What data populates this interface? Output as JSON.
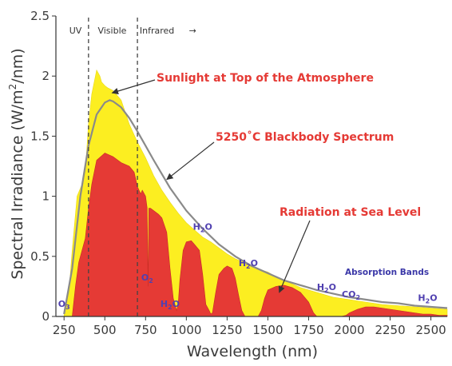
{
  "chart_data": {
    "type": "area",
    "xlabel": "Wavelength (nm)",
    "ylabel_main": "Spectral Irradiance (W/m",
    "ylabel_sup": "2",
    "ylabel_end": "/nm)",
    "xlim": [
      200,
      2600
    ],
    "ylim": [
      0,
      2.5
    ],
    "x_ticks": [
      250,
      500,
      750,
      1000,
      1250,
      1500,
      1750,
      2000,
      2250,
      2500
    ],
    "y_ticks": [
      0,
      0.5,
      1,
      1.5,
      2,
      2.5
    ],
    "y_tick_labels": [
      "0",
      "0.5",
      "1",
      "1.5",
      "2",
      "2.5"
    ],
    "grid": false,
    "colors": {
      "top_of_atmosphere": "#fcee21",
      "sea_level": "#e53a35",
      "blackbody": "#8a8a8a",
      "labels": "#e53a35",
      "molecules": "#5040b0"
    },
    "regions": [
      {
        "label": "UV",
        "x_center": 320
      },
      {
        "label": "Visible",
        "x_center": 545
      },
      {
        "label": "Infrared",
        "x_center": 820
      }
    ],
    "region_boundaries": [
      400,
      700
    ],
    "region_arrow": "→",
    "series": [
      {
        "name": "Sunlight at Top of the Atmosphere",
        "x": [
          250,
          280,
          300,
          330,
          360,
          380,
          400,
          420,
          450,
          470,
          480,
          500,
          520,
          550,
          600,
          650,
          700,
          750,
          800,
          850,
          900,
          950,
          1000,
          1050,
          1100,
          1150,
          1200,
          1250,
          1300,
          1350,
          1400,
          1450,
          1500,
          1550,
          1600,
          1700,
          1800,
          1900,
          2000,
          2100,
          2200,
          2300,
          2400,
          2500,
          2600
        ],
        "values": [
          0.05,
          0.2,
          0.55,
          1.0,
          1.1,
          1.2,
          1.6,
          1.85,
          2.05,
          2.0,
          1.95,
          1.92,
          1.9,
          1.88,
          1.8,
          1.6,
          1.45,
          1.32,
          1.17,
          1.05,
          0.95,
          0.86,
          0.78,
          0.72,
          0.66,
          0.62,
          0.57,
          0.52,
          0.48,
          0.45,
          0.42,
          0.39,
          0.37,
          0.33,
          0.3,
          0.24,
          0.2,
          0.16,
          0.14,
          0.12,
          0.1,
          0.09,
          0.08,
          0.07,
          0.06
        ]
      },
      {
        "name": "Radiation at Sea Level",
        "x": [
          300,
          320,
          340,
          360,
          380,
          400,
          420,
          450,
          500,
          550,
          600,
          650,
          680,
          700,
          720,
          730,
          750,
          760,
          765,
          770,
          780,
          800,
          830,
          850,
          880,
          900,
          920,
          940,
          950,
          960,
          980,
          1000,
          1030,
          1050,
          1080,
          1100,
          1120,
          1140,
          1150,
          1160,
          1180,
          1200,
          1230,
          1250,
          1280,
          1300,
          1320,
          1340,
          1360,
          1380,
          1400,
          1420,
          1440,
          1460,
          1480,
          1500,
          1550,
          1600,
          1650,
          1700,
          1750,
          1780,
          1800,
          1820,
          1850,
          1900,
          1950,
          1980,
          2000,
          2050,
          2100,
          2150,
          2200,
          2250,
          2300,
          2350,
          2400,
          2450,
          2500,
          2550,
          2600
        ],
        "values": [
          0.0,
          0.25,
          0.45,
          0.55,
          0.65,
          0.9,
          1.1,
          1.3,
          1.36,
          1.33,
          1.28,
          1.25,
          1.2,
          1.08,
          1.02,
          1.05,
          1.0,
          0.9,
          0.25,
          0.9,
          0.9,
          0.88,
          0.85,
          0.82,
          0.7,
          0.4,
          0.15,
          0.05,
          0.1,
          0.3,
          0.55,
          0.62,
          0.63,
          0.6,
          0.55,
          0.35,
          0.1,
          0.05,
          0.02,
          0.03,
          0.2,
          0.35,
          0.4,
          0.42,
          0.4,
          0.32,
          0.18,
          0.05,
          0.0,
          0.0,
          0.0,
          0.0,
          0.0,
          0.05,
          0.15,
          0.22,
          0.25,
          0.26,
          0.24,
          0.2,
          0.12,
          0.03,
          0.0,
          0.0,
          0.0,
          0.0,
          0.0,
          0.01,
          0.03,
          0.06,
          0.08,
          0.08,
          0.07,
          0.06,
          0.05,
          0.04,
          0.03,
          0.02,
          0.02,
          0.01,
          0.01
        ]
      },
      {
        "name": "5250˚C Blackbody Spectrum",
        "x": [
          250,
          300,
          350,
          400,
          450,
          500,
          530,
          550,
          600,
          650,
          700,
          750,
          800,
          900,
          1000,
          1100,
          1200,
          1300,
          1400,
          1500,
          1600,
          1700,
          1800,
          1900,
          2000,
          2100,
          2200,
          2300,
          2400,
          2500,
          2600
        ],
        "values": [
          0.02,
          0.4,
          1.0,
          1.42,
          1.68,
          1.78,
          1.8,
          1.79,
          1.74,
          1.65,
          1.54,
          1.42,
          1.3,
          1.07,
          0.88,
          0.73,
          0.6,
          0.5,
          0.42,
          0.36,
          0.3,
          0.26,
          0.22,
          0.19,
          0.16,
          0.14,
          0.12,
          0.11,
          0.09,
          0.08,
          0.07
        ]
      }
    ],
    "annotations": [
      {
        "text": "Sunlight at Top of the Atmosphere",
        "style": "red"
      },
      {
        "text": "5250˚C Blackbody Spectrum",
        "style": "red"
      },
      {
        "text": "Radiation at Sea Level",
        "style": "red"
      },
      {
        "text": "Absorption Bands",
        "style": "band"
      }
    ],
    "absorption_labels": [
      {
        "base": "O",
        "sub": "3",
        "x": 250,
        "y": 0.08
      },
      {
        "base": "O",
        "sub": "2",
        "x": 760,
        "y": 0.3
      },
      {
        "base": "H",
        "sub": "2",
        "tail": "O",
        "x": 900,
        "y": 0.08
      },
      {
        "base": "H",
        "sub": "2",
        "tail": "O",
        "x": 1100,
        "y": 0.72
      },
      {
        "base": "H",
        "sub": "2",
        "tail": "O",
        "x": 1380,
        "y": 0.42
      },
      {
        "base": "H",
        "sub": "2",
        "tail": "O",
        "x": 1860,
        "y": 0.22
      },
      {
        "base": "CO",
        "sub": "2",
        "x": 2010,
        "y": 0.16
      },
      {
        "base": "H",
        "sub": "2",
        "tail": "O",
        "x": 2480,
        "y": 0.13
      }
    ]
  }
}
